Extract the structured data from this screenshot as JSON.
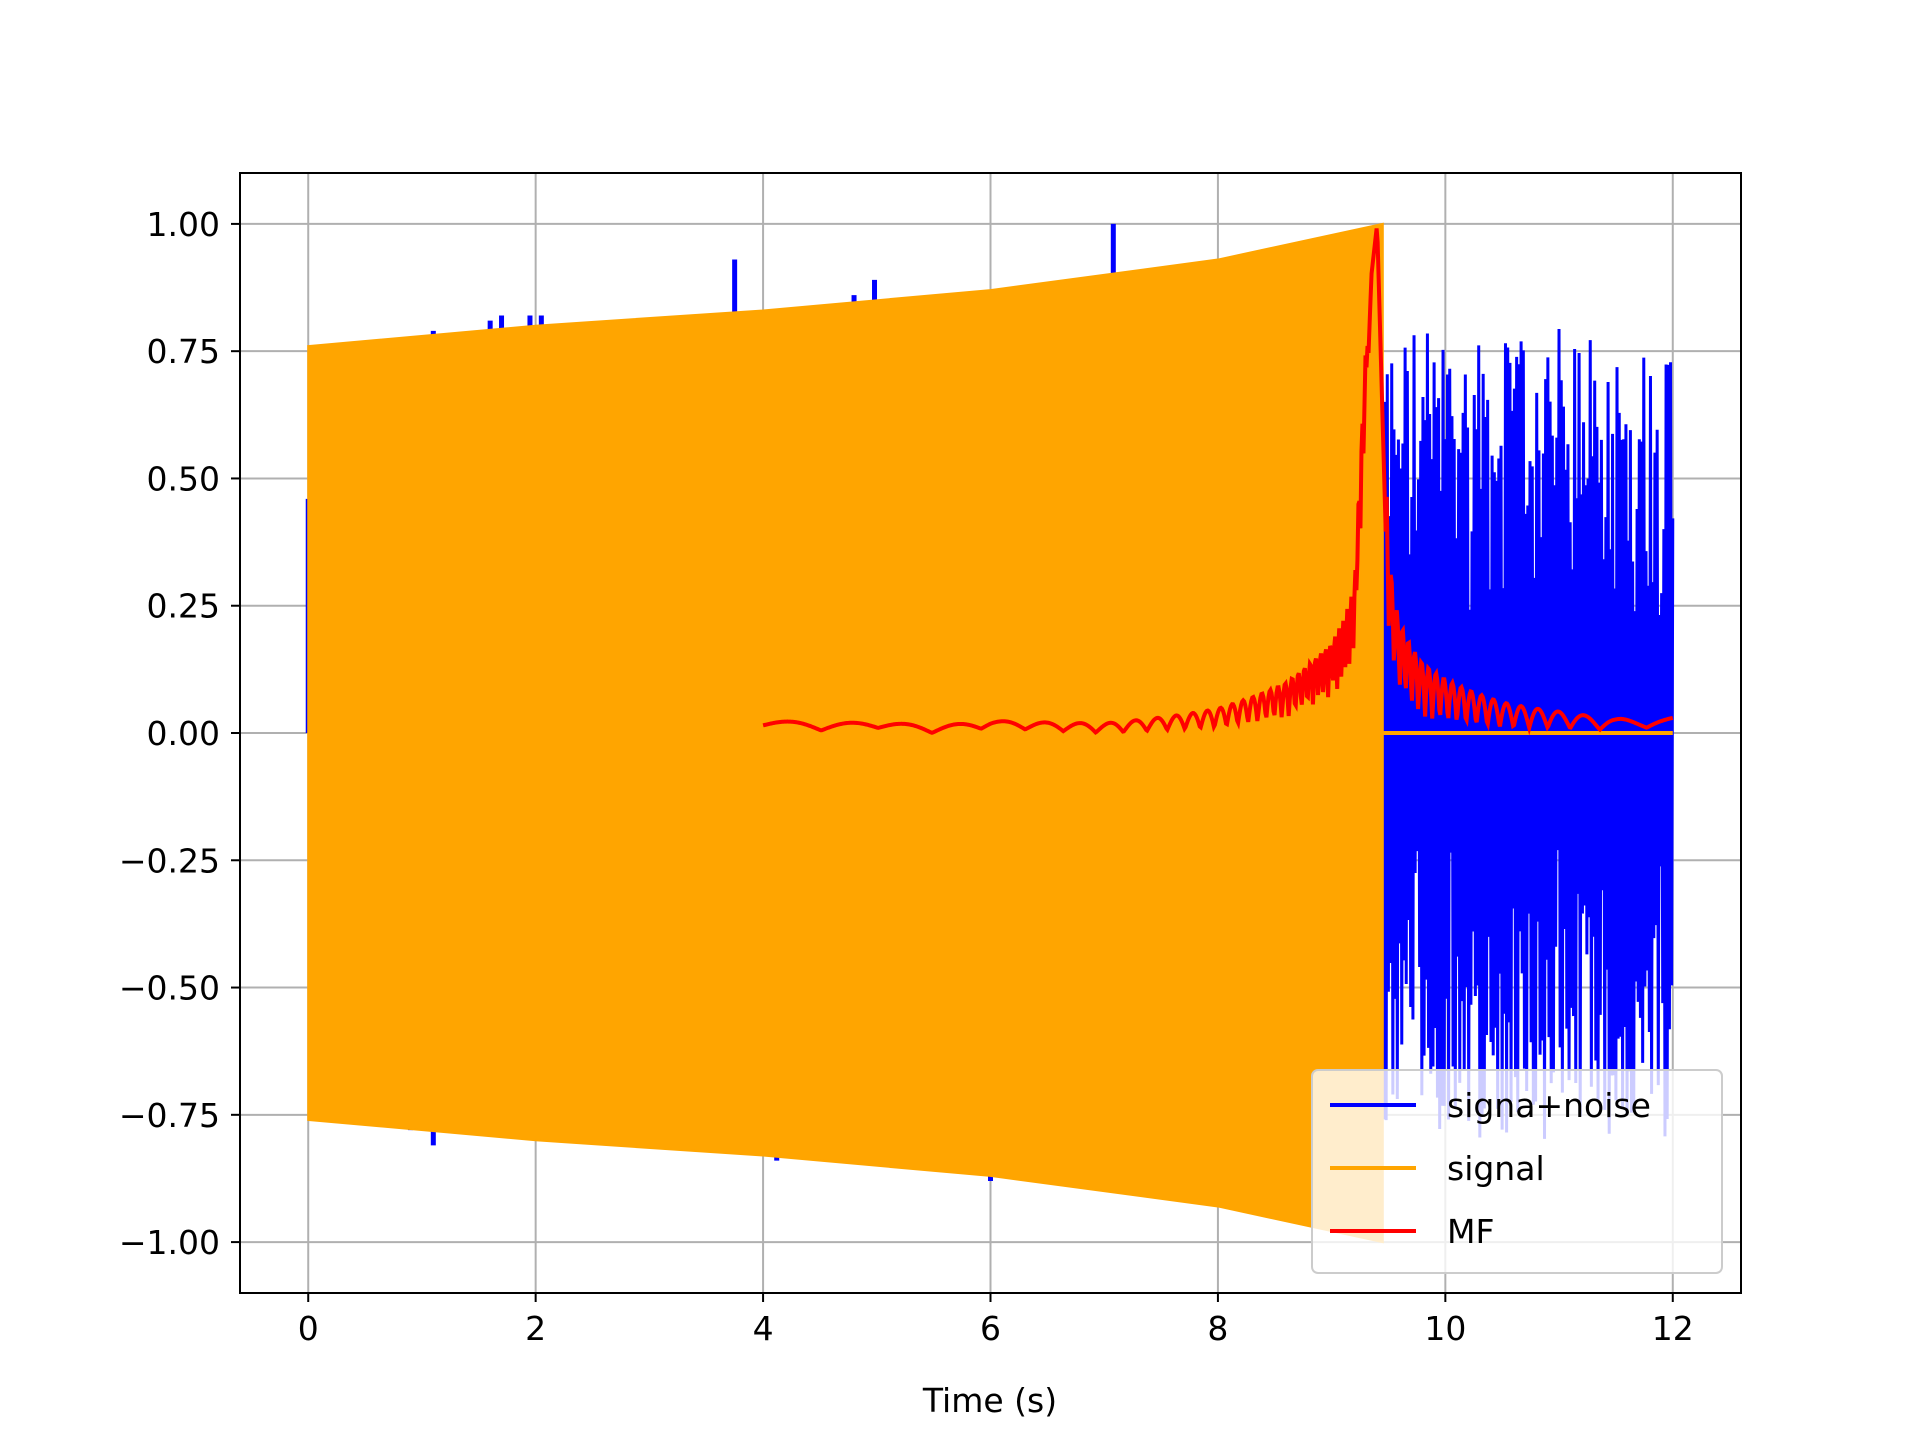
{
  "chart_data": {
    "type": "line",
    "xlabel": "Time (s)",
    "ylabel": "",
    "xlim": [
      -0.6,
      12.6
    ],
    "ylim": [
      -1.1,
      1.1
    ],
    "xticks": [
      0,
      2,
      4,
      6,
      8,
      10,
      12
    ],
    "yticks": [
      -1.0,
      -0.75,
      -0.5,
      -0.25,
      0.0,
      0.25,
      0.5,
      0.75,
      1.0
    ],
    "xtick_labels": [
      "0",
      "2",
      "4",
      "6",
      "8",
      "10",
      "12"
    ],
    "ytick_labels": [
      "−1.00",
      "−0.75",
      "−0.50",
      "−0.25",
      "0.00",
      "0.25",
      "0.50",
      "0.75",
      "1.00"
    ],
    "grid": true,
    "legend_position": "lower-right",
    "series": [
      {
        "name": "signa+noise",
        "color": "#0000ff",
        "description_points": {
          "spikes_during_signal": [
            {
              "x": 1.1,
              "y": 0.79
            },
            {
              "x": 1.1,
              "y": -0.81
            },
            {
              "x": 1.6,
              "y": 0.81
            },
            {
              "x": 1.7,
              "y": 0.82
            },
            {
              "x": 1.95,
              "y": 0.82
            },
            {
              "x": 2.05,
              "y": 0.82
            },
            {
              "x": 3.75,
              "y": 0.93
            },
            {
              "x": 4.8,
              "y": 0.86
            },
            {
              "x": 4.98,
              "y": 0.89
            },
            {
              "x": 7.08,
              "y": 1.0
            },
            {
              "x": 0.9,
              "y": -0.78
            },
            {
              "x": 1.78,
              "y": -0.79
            },
            {
              "x": 4.12,
              "y": -0.84
            },
            {
              "x": 6.0,
              "y": -0.88
            },
            {
              "x": 0.0,
              "y": 0.46
            }
          ],
          "noise_region": {
            "x_start": 9.45,
            "x_end": 12.0,
            "ymin": -0.8,
            "ymax": 0.76
          }
        }
      },
      {
        "name": "signal",
        "color": "#ffa500",
        "envelope": [
          {
            "x": 0.0,
            "upper": 0.76,
            "lower": -0.76
          },
          {
            "x": 2.0,
            "upper": 0.8,
            "lower": -0.8
          },
          {
            "x": 4.0,
            "upper": 0.83,
            "lower": -0.83
          },
          {
            "x": 6.0,
            "upper": 0.87,
            "lower": -0.87
          },
          {
            "x": 8.0,
            "upper": 0.93,
            "lower": -0.93
          },
          {
            "x": 9.45,
            "upper": 1.0,
            "lower": -1.0
          }
        ],
        "after_end_value": 0.0,
        "x_end": 12.0
      },
      {
        "name": "MF",
        "color": "#ff0000",
        "x": [
          4.0,
          4.5,
          5.0,
          5.5,
          6.0,
          6.5,
          7.0,
          7.5,
          8.0,
          8.3,
          8.6,
          8.8,
          9.0,
          9.1,
          9.2,
          9.3,
          9.35,
          9.4,
          9.45,
          9.5,
          9.55,
          9.6,
          9.7,
          9.8,
          10.0,
          10.5,
          11.0,
          11.5,
          12.0
        ],
        "values": [
          0.015,
          0.005,
          0.01,
          0.0,
          0.01,
          0.005,
          0.0,
          0.005,
          0.01,
          0.02,
          0.03,
          0.05,
          0.07,
          0.1,
          0.15,
          0.6,
          0.9,
          1.0,
          0.6,
          0.2,
          0.12,
          0.08,
          0.05,
          0.03,
          0.02,
          0.01,
          0.01,
          0.005,
          0.015
        ]
      }
    ],
    "legend": [
      "signa+noise",
      "signal",
      "MF"
    ]
  }
}
